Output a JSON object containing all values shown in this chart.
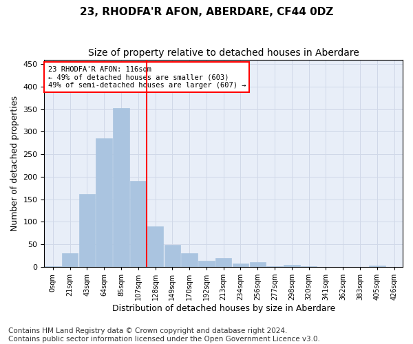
{
  "title": "23, RHODFA'R AFON, ABERDARE, CF44 0DZ",
  "subtitle": "Size of property relative to detached houses in Aberdare",
  "xlabel": "Distribution of detached houses by size in Aberdare",
  "ylabel": "Number of detached properties",
  "bar_labels": [
    "0sqm",
    "21sqm",
    "43sqm",
    "64sqm",
    "85sqm",
    "107sqm",
    "128sqm",
    "149sqm",
    "170sqm",
    "192sqm",
    "213sqm",
    "234sqm",
    "256sqm",
    "277sqm",
    "298sqm",
    "320sqm",
    "341sqm",
    "362sqm",
    "383sqm",
    "405sqm",
    "426sqm"
  ],
  "bar_values": [
    2,
    30,
    161,
    285,
    352,
    191,
    90,
    49,
    31,
    14,
    19,
    7,
    10,
    1,
    5,
    1,
    0,
    0,
    0,
    3,
    0
  ],
  "bar_color": "#aac4e0",
  "bar_edge_color": "#aac4e0",
  "vline_x": 5.5,
  "vline_color": "red",
  "annotation_text": "23 RHODFA'R AFON: 116sqm\n← 49% of detached houses are smaller (603)\n49% of semi-detached houses are larger (607) →",
  "annotation_box_color": "white",
  "annotation_box_edge_color": "red",
  "ylim": [
    0,
    460
  ],
  "yticks": [
    0,
    50,
    100,
    150,
    200,
    250,
    300,
    350,
    400,
    450
  ],
  "grid_color": "#d0d8e8",
  "background_color": "#e8eef8",
  "footer_text": "Contains HM Land Registry data © Crown copyright and database right 2024.\nContains public sector information licensed under the Open Government Licence v3.0.",
  "title_fontsize": 11,
  "subtitle_fontsize": 10,
  "xlabel_fontsize": 9,
  "ylabel_fontsize": 9,
  "footer_fontsize": 7.5
}
